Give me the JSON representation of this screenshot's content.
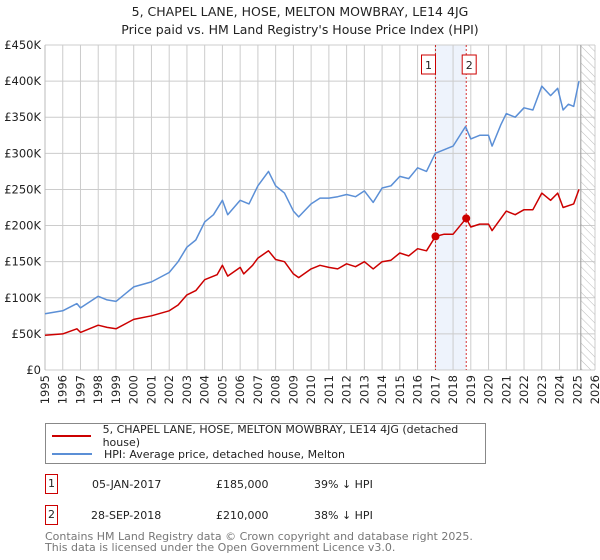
{
  "title_line1": "5, CHAPEL LANE, HOSE, MELTON MOWBRAY, LE14 4JG",
  "title_line2": "Price paid vs. HM Land Registry's House Price Index (HPI)",
  "colors": {
    "property": "#cc0000",
    "hpi": "#5b8fd6",
    "highlight": "#eef3fc",
    "grid": "#cccccc"
  },
  "chart_data": {
    "type": "line",
    "title": "5, CHAPEL LANE, HOSE, MELTON MOWBRAY, LE14 4JG",
    "xlabel": "",
    "ylabel": "",
    "xlim": [
      1995,
      2026
    ],
    "ylim": [
      0,
      450000
    ],
    "yticks": [
      {
        "v": 0,
        "label": "£0"
      },
      {
        "v": 50000,
        "label": "£50K"
      },
      {
        "v": 100000,
        "label": "£100K"
      },
      {
        "v": 150000,
        "label": "£150K"
      },
      {
        "v": 200000,
        "label": "£200K"
      },
      {
        "v": 250000,
        "label": "£250K"
      },
      {
        "v": 300000,
        "label": "£300K"
      },
      {
        "v": 350000,
        "label": "£350K"
      },
      {
        "v": 400000,
        "label": "£400K"
      },
      {
        "v": 450000,
        "label": "£450K"
      }
    ],
    "xticks": [
      "1995",
      "1996",
      "1997",
      "1998",
      "1999",
      "2000",
      "2001",
      "2002",
      "2003",
      "2004",
      "2005",
      "2006",
      "2007",
      "2008",
      "2009",
      "2010",
      "2011",
      "2012",
      "2013",
      "2014",
      "2015",
      "2016",
      "2017",
      "2018",
      "2019",
      "2020",
      "2021",
      "2022",
      "2023",
      "2024",
      "2025",
      "2026"
    ],
    "grid": true,
    "forecast_hatch_from": 2025.2,
    "highlight_span": [
      2017.01,
      2018.74
    ],
    "series": [
      {
        "name": "5, CHAPEL LANE, HOSE, MELTON MOWBRAY, LE14 4JG (detached house)",
        "color": "#cc0000",
        "x": [
          1995,
          1996,
          1996.8,
          1997,
          1998,
          1998.5,
          1999,
          2000,
          2001,
          2002,
          2002.5,
          2003,
          2003.5,
          2004,
          2004.7,
          2005,
          2005.3,
          2006,
          2006.2,
          2006.7,
          2007,
          2007.6,
          2008,
          2008.5,
          2009,
          2009.3,
          2010,
          2010.5,
          2011,
          2011.5,
          2012,
          2012.5,
          2013,
          2013.5,
          2014,
          2014.5,
          2015,
          2015.5,
          2016,
          2016.5,
          2017.01,
          2017.5,
          2018,
          2018.74,
          2019,
          2019.5,
          2020,
          2020.2,
          2020.7,
          2021,
          2021.5,
          2022,
          2022.5,
          2023,
          2023.5,
          2023.9,
          2024.2,
          2024.8,
          2025.1
        ],
        "y": [
          48000,
          50000,
          57000,
          52000,
          62000,
          59000,
          57000,
          70000,
          75000,
          82000,
          90000,
          104000,
          110000,
          125000,
          132000,
          145000,
          130000,
          142000,
          133000,
          145000,
          155000,
          165000,
          153000,
          150000,
          133000,
          128000,
          140000,
          145000,
          142000,
          140000,
          147000,
          143000,
          150000,
          140000,
          150000,
          152000,
          162000,
          158000,
          168000,
          165000,
          185000,
          188000,
          188000,
          210000,
          198000,
          202000,
          202000,
          193000,
          210000,
          220000,
          215000,
          222000,
          222000,
          245000,
          235000,
          245000,
          225000,
          230000,
          250000
        ]
      },
      {
        "name": "HPI: Average price, detached house, Melton",
        "color": "#5b8fd6",
        "x": [
          1995,
          1996,
          1996.8,
          1997,
          1998,
          1998.5,
          1999,
          2000,
          2001,
          2002,
          2002.5,
          2003,
          2003.5,
          2004,
          2004.5,
          2005,
          2005.3,
          2006,
          2006.5,
          2007,
          2007.6,
          2008,
          2008.5,
          2009,
          2009.3,
          2010,
          2010.5,
          2011,
          2011.5,
          2012,
          2012.5,
          2013,
          2013.5,
          2014,
          2014.5,
          2015,
          2015.5,
          2016,
          2016.5,
          2017,
          2017.5,
          2018,
          2018.7,
          2019,
          2019.5,
          2020,
          2020.2,
          2020.7,
          2021,
          2021.5,
          2022,
          2022.5,
          2023,
          2023.5,
          2023.9,
          2024.2,
          2024.5,
          2024.8,
          2025.1
        ],
        "y": [
          78000,
          82000,
          92000,
          86000,
          102000,
          97000,
          95000,
          115000,
          122000,
          135000,
          150000,
          170000,
          180000,
          205000,
          215000,
          235000,
          215000,
          235000,
          230000,
          255000,
          275000,
          255000,
          245000,
          220000,
          212000,
          230000,
          238000,
          238000,
          240000,
          243000,
          240000,
          248000,
          232000,
          252000,
          255000,
          268000,
          265000,
          280000,
          275000,
          300000,
          305000,
          310000,
          337000,
          320000,
          325000,
          325000,
          310000,
          340000,
          355000,
          350000,
          363000,
          360000,
          393000,
          380000,
          390000,
          360000,
          368000,
          365000,
          400000
        ]
      }
    ],
    "annotations": [
      {
        "label": "1",
        "x": 2017.01,
        "y": 185000
      },
      {
        "label": "2",
        "x": 2018.74,
        "y": 210000
      }
    ]
  },
  "legend": {
    "property_label": "5, CHAPEL LANE, HOSE, MELTON MOWBRAY, LE14 4JG (detached house)",
    "hpi_label": "HPI: Average price, detached house, Melton"
  },
  "transactions": [
    {
      "num": "1",
      "date": "05-JAN-2017",
      "price": "£185,000",
      "hpi": "39% ↓ HPI"
    },
    {
      "num": "2",
      "date": "28-SEP-2018",
      "price": "£210,000",
      "hpi": "38% ↓ HPI"
    }
  ],
  "footer": {
    "line1": "Contains HM Land Registry data © Crown copyright and database right 2025.",
    "line2": "This data is licensed under the Open Government Licence v3.0."
  }
}
